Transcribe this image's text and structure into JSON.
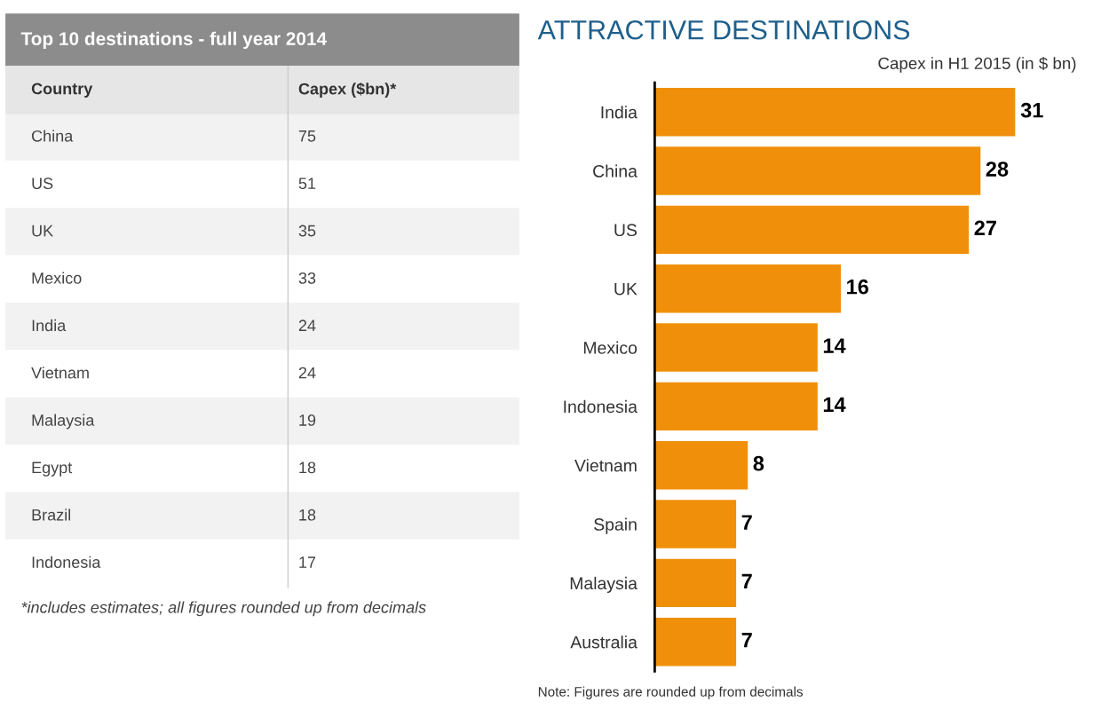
{
  "chart_data": [
    {
      "type": "other",
      "title": "Top 10 destinations - full year 2014",
      "categories": [
        "China",
        "US",
        "UK",
        "Mexico",
        "India",
        "Vietnam",
        "Malaysia",
        "Egypt",
        "Brazil",
        "Indonesia"
      ],
      "values": [
        75,
        51,
        35,
        33,
        24,
        24,
        19,
        18,
        18,
        17
      ],
      "data_labels": true,
      "annotations": [
        "Country",
        "Capex ($bn)*",
        "*includes estimates; all figures rounded up from decimals"
      ]
    },
    {
      "type": "bar",
      "orientation": "horizontal",
      "title": "ATTRACTIVE DESTINATIONS",
      "subtitle": "Capex in H1 2015 (in $ bn)",
      "categories": [
        "India",
        "China",
        "US",
        "UK",
        "Mexico",
        "Indonesia",
        "Vietnam",
        "Spain",
        "Malaysia",
        "Australia"
      ],
      "values": [
        31,
        28,
        27,
        16,
        14,
        14,
        8,
        7,
        7,
        7
      ],
      "color": "#f0900a",
      "data_labels": true,
      "tick_labels": "y",
      "annotations": [
        "Note: Figures are rounded up from decimals"
      ]
    }
  ]
}
